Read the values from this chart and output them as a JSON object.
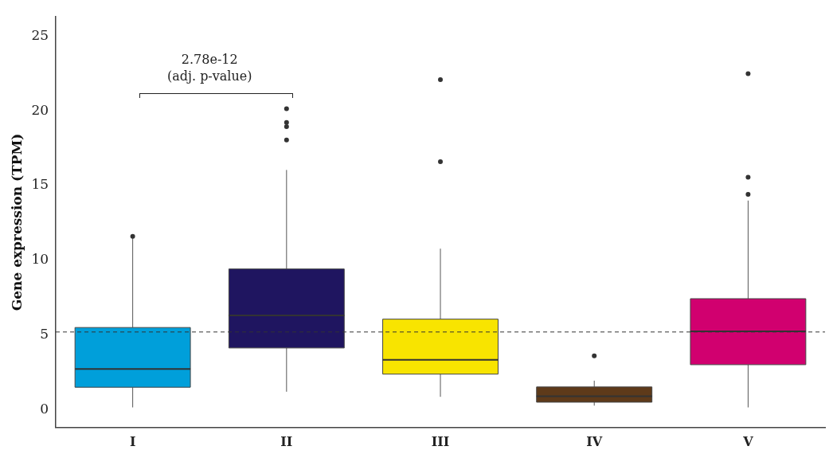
{
  "chart_data": {
    "type": "box",
    "ylabel": "Gene expression (TPM)",
    "categories": [
      "I",
      "II",
      "III",
      "IV",
      "V"
    ],
    "colors": [
      "#009fda",
      "#1f1560",
      "#f8e400",
      "#5e3a1a",
      "#d1006f"
    ],
    "boxes": [
      {
        "low": 0.15,
        "q1": 1.5,
        "median": 2.72,
        "q3": 5.5,
        "high": 11.5,
        "outliers": [
          11.6
        ]
      },
      {
        "low": 1.2,
        "q1": 4.13,
        "median": 6.31,
        "q3": 9.42,
        "high": 16.05,
        "outliers": [
          18.06,
          18.95,
          19.23,
          20.15
        ]
      },
      {
        "low": 0.86,
        "q1": 2.38,
        "median": 3.34,
        "q3": 6.06,
        "high": 10.78,
        "outliers": [
          16.6,
          22.1
        ]
      },
      {
        "low": 0.27,
        "q1": 0.5,
        "median": 0.9,
        "q3": 1.52,
        "high": 1.94,
        "outliers": [
          3.6
        ]
      },
      {
        "low": 0.15,
        "q1": 3.01,
        "median": 5.24,
        "q3": 7.43,
        "high": 14.0,
        "outliers": [
          14.42,
          15.57,
          22.5
        ]
      }
    ],
    "ylim": [
      -1.2,
      26.3
    ],
    "yticks": [
      0,
      5,
      10,
      15,
      20,
      25
    ],
    "grid": false,
    "legend": false,
    "ref_lines": [
      {
        "axis": "y",
        "value": 5.2,
        "color": "#333333",
        "line_style": "dashed"
      }
    ],
    "annotations": [
      "2.78e-12\n(adj. p-value)"
    ]
  }
}
